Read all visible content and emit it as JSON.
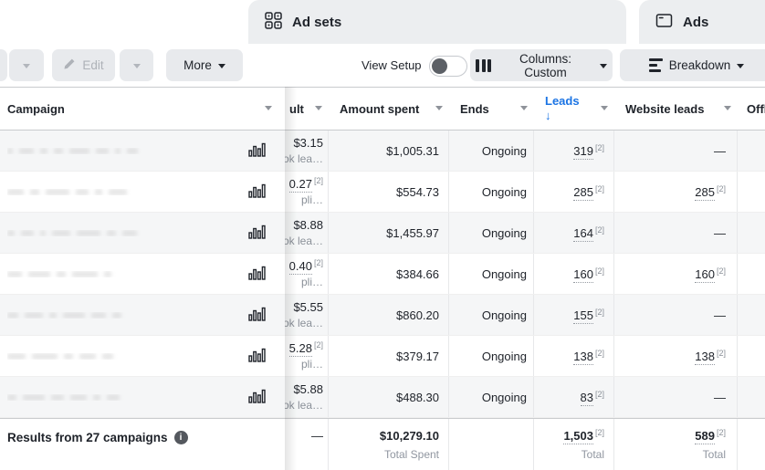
{
  "tabs": {
    "adsets": {
      "label": "Ad sets"
    },
    "ads": {
      "label": "Ads"
    }
  },
  "toolbar": {
    "edit_label": "Edit",
    "more_label": "More",
    "view_setup_label": "View Setup",
    "view_setup_on": false,
    "columns_label": "Columns: Custom",
    "breakdown_label": "Breakdown"
  },
  "icons": {
    "sort_desc": "↓",
    "info": "i"
  },
  "colors": {
    "accent_blue": "#1b74e4",
    "zebra_row": "#f5f6f7",
    "tab_bg": "#eceef0",
    "button_bg": "#e8eaed"
  },
  "table": {
    "columns": {
      "campaign": {
        "label": "Campaign"
      },
      "cost": {
        "label": "ult"
      },
      "spent": {
        "label": "Amount spent"
      },
      "ends": {
        "label": "Ends"
      },
      "leads": {
        "label": "Leads",
        "sorted": "desc"
      },
      "website": {
        "label": "Website leads"
      },
      "offline": {
        "label": "Offl"
      }
    },
    "rows": [
      {
        "redact": [
          6,
          16,
          8,
          10,
          22,
          14,
          6,
          12
        ],
        "cost": {
          "v": "$3.15",
          "sub": "ok lea…"
        },
        "spent": "$1,005.31",
        "ends": "Ongoing",
        "leads": {
          "v": "319",
          "sup": "[2]",
          "dotted": true
        },
        "website": {
          "v": "—"
        }
      },
      {
        "redact": [
          18,
          10,
          26,
          14,
          8,
          20
        ],
        "cost": {
          "v": "0.27",
          "sup": "[2]",
          "dotted": true,
          "sub": "pli…"
        },
        "spent": "$554.73",
        "ends": "Ongoing",
        "leads": {
          "v": "285",
          "sup": "[2]",
          "dotted": true
        },
        "website": {
          "v": "285",
          "sup": "[2]",
          "dotted": true
        }
      },
      {
        "redact": [
          8,
          14,
          6,
          20,
          26,
          10,
          16
        ],
        "cost": {
          "v": "$8.88",
          "sub": "ok lea…"
        },
        "spent": "$1,455.97",
        "ends": "Ongoing",
        "leads": {
          "v": "164",
          "sup": "[2]",
          "dotted": true
        },
        "website": {
          "v": "—"
        }
      },
      {
        "redact": [
          16,
          24,
          10,
          28,
          8
        ],
        "cost": {
          "v": "0.40",
          "sup": "[2]",
          "dotted": true,
          "sub": "pli…"
        },
        "spent": "$384.66",
        "ends": "Ongoing",
        "leads": {
          "v": "160",
          "sup": "[2]",
          "dotted": true
        },
        "website": {
          "v": "160",
          "sup": "[2]",
          "dotted": true
        }
      },
      {
        "redact": [
          12,
          20,
          8,
          24,
          16,
          10
        ],
        "cost": {
          "v": "$5.55",
          "sub": "ok lea…"
        },
        "spent": "$860.20",
        "ends": "Ongoing",
        "leads": {
          "v": "155",
          "sup": "[2]",
          "dotted": true
        },
        "website": {
          "v": "—"
        }
      },
      {
        "redact": [
          20,
          28,
          10,
          18,
          12
        ],
        "cost": {
          "v": "5.28",
          "sup": "[2]",
          "dotted": true,
          "sub": "pli…"
        },
        "spent": "$379.17",
        "ends": "Ongoing",
        "leads": {
          "v": "138",
          "sup": "[2]",
          "dotted": true
        },
        "website": {
          "v": "138",
          "sup": "[2]",
          "dotted": true
        }
      },
      {
        "redact": [
          10,
          24,
          14,
          18,
          8,
          14
        ],
        "cost": {
          "v": "$5.88",
          "sub": "ok lea…"
        },
        "spent": "$488.30",
        "ends": "Ongoing",
        "leads": {
          "v": "83",
          "sup": "[2]",
          "dotted": true
        },
        "website": {
          "v": "—"
        }
      }
    ],
    "footer": {
      "results_label": "Results from 27 campaigns",
      "cost_total": "—",
      "spent_total": "$10,279.10",
      "spent_total_sub": "Total Spent",
      "leads_total": "1,503",
      "leads_total_sup": "[2]",
      "leads_total_sub": "Total",
      "website_total": "589",
      "website_total_sup": "[2]",
      "website_total_sub": "Total"
    }
  }
}
